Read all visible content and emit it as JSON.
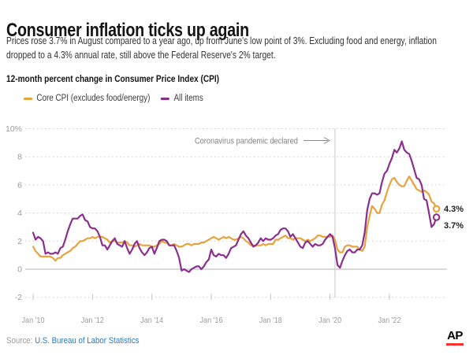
{
  "header": {
    "title": "Consumer inflation ticks up again",
    "subtitle_lines": [
      "Prices rose 3.7% in August compared to a year ago, up from June's low point of 3%. Excluding food and energy, inflation",
      "dropped to a 4.3% annual rate, still above the Federal Reserve's 2% target."
    ]
  },
  "chart": {
    "heading": "12-month percent change in Consumer Price Index (CPI)"
  },
  "chart_data": {
    "type": "line",
    "title": "12-month percent change in Consumer Price Index (CPI)",
    "x_start": "2010-01",
    "x_end": "2023-08",
    "frequency": "monthly",
    "ylim": [
      -2,
      10
    ],
    "ytick_values": [
      10,
      8,
      6,
      4,
      2,
      0,
      -2
    ],
    "ytick_labels": [
      "10%",
      "8",
      "6",
      "4",
      "2",
      "0",
      "-2"
    ],
    "xtick_labels": [
      "Jan '10",
      "Jan '12",
      "Jan '14",
      "Jan '16",
      "Jan '18",
      "Jan '20",
      "Jan '22"
    ],
    "grid": "dotted horizontal",
    "legend_position": "top-left",
    "annotation": {
      "text": "Coronavirus pandemic declared",
      "x": "2020-03"
    },
    "series": [
      {
        "name": "Core CPI (excludes food/energy)",
        "color": "#E8A23D",
        "end_label": "4.3%",
        "values": [
          1.6,
          1.3,
          1.1,
          0.9,
          0.9,
          0.9,
          0.9,
          0.9,
          0.8,
          0.6,
          0.8,
          0.8,
          1.0,
          1.1,
          1.2,
          1.3,
          1.5,
          1.6,
          1.8,
          2.0,
          2.0,
          2.1,
          2.2,
          2.2,
          2.3,
          2.2,
          2.3,
          2.3,
          2.3,
          2.2,
          2.1,
          1.9,
          2.0,
          2.0,
          1.9,
          1.9,
          1.9,
          2.0,
          1.9,
          1.7,
          1.7,
          1.6,
          1.7,
          1.8,
          1.7,
          1.7,
          1.7,
          1.7,
          1.6,
          1.6,
          1.7,
          1.8,
          2.0,
          1.9,
          1.9,
          1.7,
          1.7,
          1.8,
          1.7,
          1.6,
          1.6,
          1.7,
          1.8,
          1.8,
          1.7,
          1.8,
          1.8,
          1.8,
          1.9,
          1.9,
          2.0,
          2.1,
          2.2,
          2.3,
          2.2,
          2.1,
          2.2,
          2.3,
          2.2,
          2.3,
          2.2,
          2.1,
          2.1,
          2.2,
          2.3,
          2.2,
          2.0,
          1.9,
          1.7,
          1.7,
          1.7,
          1.7,
          1.7,
          1.8,
          1.7,
          1.8,
          1.8,
          1.8,
          2.1,
          2.1,
          2.2,
          2.3,
          2.4,
          2.2,
          2.2,
          2.1,
          2.2,
          2.2,
          2.2,
          2.1,
          2.0,
          2.1,
          2.0,
          2.1,
          2.2,
          2.4,
          2.4,
          2.3,
          2.3,
          2.3,
          2.3,
          2.4,
          2.1,
          1.4,
          1.2,
          1.2,
          1.6,
          1.7,
          1.7,
          1.6,
          1.6,
          1.6,
          1.4,
          1.3,
          1.6,
          3.0,
          3.8,
          4.5,
          4.3,
          4.0,
          4.0,
          4.6,
          4.9,
          5.5,
          6.0,
          6.4,
          6.5,
          6.2,
          6.0,
          5.9,
          5.9,
          6.3,
          6.6,
          6.3,
          6.0,
          5.7,
          5.6,
          5.5,
          5.6,
          5.5,
          5.3,
          4.8,
          4.7,
          4.3
        ]
      },
      {
        "name": "All items",
        "color": "#8B2E8F",
        "end_label": "3.7%",
        "values": [
          2.6,
          2.1,
          2.3,
          2.2,
          2.0,
          1.1,
          1.2,
          1.1,
          1.1,
          1.2,
          1.1,
          1.5,
          1.6,
          2.1,
          2.7,
          3.2,
          3.6,
          3.6,
          3.6,
          3.8,
          3.9,
          3.5,
          3.4,
          3.0,
          2.9,
          2.9,
          2.7,
          2.3,
          1.7,
          1.7,
          1.4,
          1.7,
          2.0,
          2.2,
          1.8,
          1.7,
          1.6,
          2.0,
          1.5,
          1.1,
          1.4,
          1.8,
          2.0,
          1.5,
          1.2,
          1.0,
          1.2,
          1.5,
          1.6,
          1.1,
          1.5,
          2.0,
          2.1,
          2.1,
          2.0,
          1.7,
          1.7,
          1.7,
          1.3,
          0.8,
          -0.1,
          0.0,
          -0.1,
          -0.2,
          0.0,
          0.1,
          0.2,
          0.2,
          0.0,
          0.2,
          0.5,
          0.7,
          1.4,
          1.0,
          0.9,
          1.1,
          1.0,
          1.0,
          0.8,
          1.1,
          1.5,
          1.6,
          1.7,
          2.1,
          2.5,
          2.7,
          2.4,
          2.2,
          1.9,
          1.6,
          1.7,
          1.9,
          2.2,
          2.0,
          2.2,
          2.1,
          2.1,
          2.2,
          2.4,
          2.5,
          2.8,
          2.9,
          2.9,
          2.7,
          2.3,
          2.5,
          2.2,
          1.9,
          1.6,
          1.5,
          1.9,
          2.0,
          1.8,
          1.6,
          1.8,
          1.7,
          1.7,
          1.8,
          2.1,
          2.3,
          2.5,
          2.3,
          1.5,
          0.3,
          0.1,
          0.6,
          1.0,
          1.3,
          1.4,
          1.2,
          1.2,
          1.4,
          1.4,
          1.7,
          2.6,
          4.2,
          5.0,
          5.4,
          5.4,
          5.3,
          5.4,
          6.2,
          6.8,
          7.0,
          7.5,
          7.9,
          8.5,
          8.3,
          8.6,
          9.1,
          8.5,
          8.3,
          8.2,
          7.7,
          7.1,
          6.5,
          6.4,
          6.0,
          5.0,
          4.9,
          4.0,
          3.0,
          3.2,
          3.7
        ]
      }
    ]
  },
  "footer": {
    "source_prefix": "Source:",
    "source_text": "U.S. Bureau of Labor Statistics",
    "ap_logo": "AP"
  },
  "colors": {
    "core_cpi_orange": "#E8A23D",
    "all_items_purple": "#8B2E8F",
    "source_link_blue": "#2879BD",
    "ap_red": "#FF322E",
    "axis_text_gray": "#9B9B9B",
    "gridline_gray": "#CFCFCF"
  }
}
